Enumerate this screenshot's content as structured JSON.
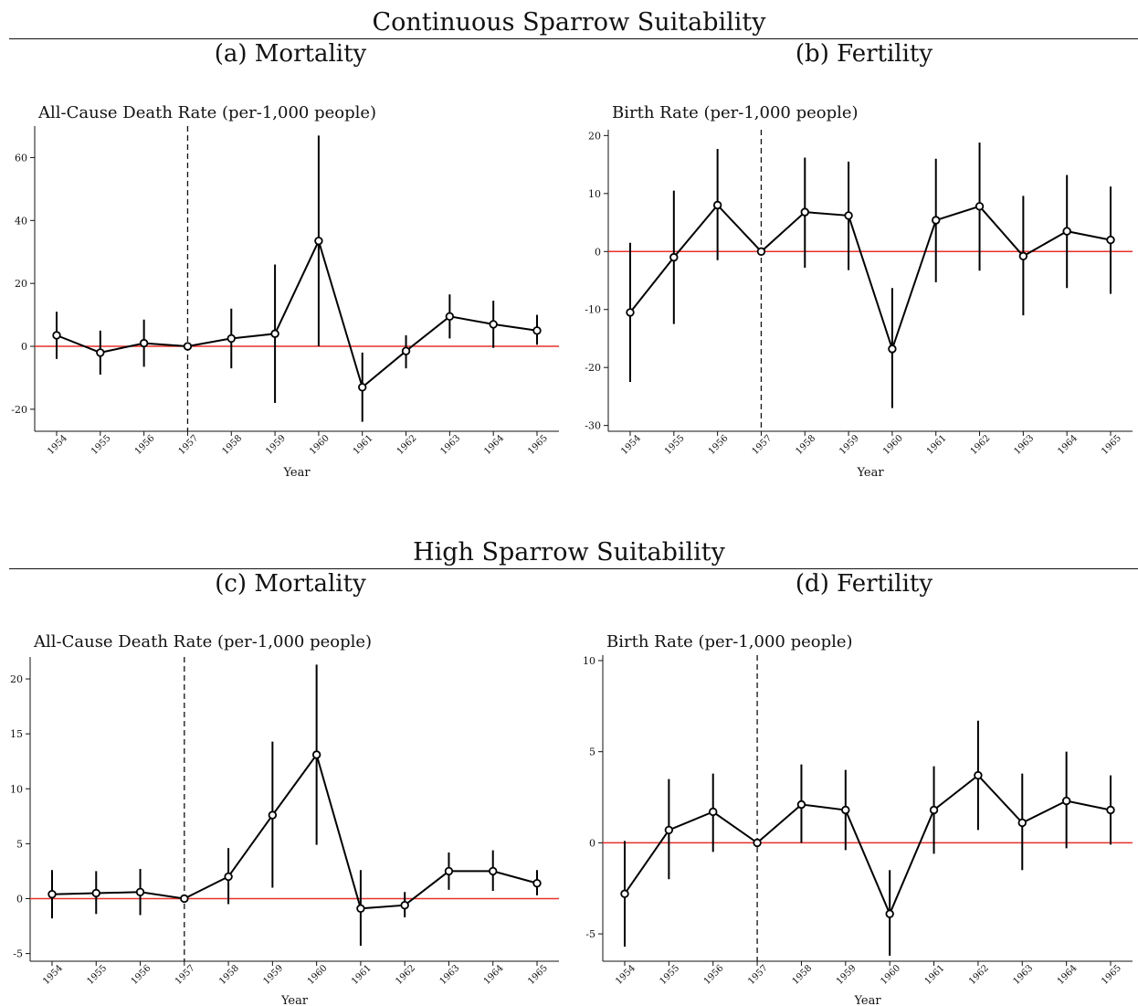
{
  "section_titles": [
    "Continuous Sparrow Suitability",
    "High Sparrow Suitability"
  ],
  "chart_data": [
    {
      "type": "line",
      "panel_title": "(a) Mortality",
      "title": "All-Cause Death Rate (per-1,000 people)",
      "xlabel": "Year",
      "ylabel": "",
      "categories": [
        "1954",
        "1955",
        "1956",
        "1957",
        "1958",
        "1959",
        "1960",
        "1961",
        "1962",
        "1963",
        "1964",
        "1965"
      ],
      "values": [
        3.5,
        -2.0,
        1.0,
        0,
        2.5,
        4.0,
        33.5,
        -13.0,
        -1.5,
        9.5,
        7.0,
        5.0
      ],
      "ci_low": [
        -4.0,
        -9.0,
        -6.5,
        0,
        -7.0,
        -18.0,
        0,
        -24.0,
        -7.0,
        2.5,
        -0.5,
        0.5
      ],
      "ci_high": [
        11.0,
        5.0,
        8.5,
        0,
        12.0,
        26.0,
        67.0,
        -2.0,
        3.5,
        16.5,
        14.5,
        10.0
      ],
      "yticks": [
        -20,
        0,
        20,
        40,
        60
      ],
      "ylim": [
        -27,
        70
      ],
      "reference_year": "1957",
      "zero_line_color": "#e8302a",
      "line_color": "#000000"
    },
    {
      "type": "line",
      "panel_title": "(b) Fertility",
      "title": "Birth Rate (per-1,000 people)",
      "xlabel": "Year",
      "ylabel": "",
      "categories": [
        "1954",
        "1955",
        "1956",
        "1957",
        "1958",
        "1959",
        "1960",
        "1961",
        "1962",
        "1963",
        "1964",
        "1965"
      ],
      "values": [
        -10.5,
        -1.0,
        8.0,
        0,
        6.8,
        6.2,
        -16.8,
        5.4,
        7.8,
        -0.8,
        3.5,
        2.0
      ],
      "ci_low": [
        -22.5,
        -12.5,
        -1.5,
        0,
        -2.8,
        -3.2,
        -27.0,
        -5.3,
        -3.3,
        -11.0,
        -6.3,
        -7.3
      ],
      "ci_high": [
        1.5,
        10.5,
        17.7,
        0,
        16.2,
        15.5,
        -6.3,
        16.0,
        18.8,
        9.6,
        13.2,
        11.2
      ],
      "yticks": [
        -30,
        -20,
        -10,
        0,
        10,
        20
      ],
      "ylim": [
        -31,
        21
      ],
      "reference_year": "1957",
      "zero_line_color": "#e8302a",
      "line_color": "#000000"
    },
    {
      "type": "line",
      "panel_title": "(c) Mortality",
      "title": "All-Cause Death Rate (per-1,000 people)",
      "xlabel": "Year",
      "ylabel": "",
      "categories": [
        "1954",
        "1955",
        "1956",
        "1957",
        "1958",
        "1959",
        "1960",
        "1961",
        "1962",
        "1963",
        "1964",
        "1965"
      ],
      "values": [
        0.4,
        0.5,
        0.6,
        0,
        2.0,
        7.6,
        13.1,
        -0.9,
        -0.6,
        2.5,
        2.5,
        1.4
      ],
      "ci_low": [
        -1.8,
        -1.4,
        -1.5,
        0,
        -0.5,
        1.0,
        4.9,
        -4.3,
        -1.7,
        0.8,
        0.7,
        0.3
      ],
      "ci_high": [
        2.6,
        2.5,
        2.7,
        0,
        4.6,
        14.3,
        21.3,
        2.6,
        0.6,
        4.2,
        4.4,
        2.6
      ],
      "yticks": [
        -5,
        0,
        5,
        10,
        15,
        20
      ],
      "ylim": [
        -5.7,
        22
      ],
      "reference_year": "1957",
      "zero_line_color": "#e8302a",
      "line_color": "#000000"
    },
    {
      "type": "line",
      "panel_title": "(d) Fertility",
      "title": "Birth Rate (per-1,000 people)",
      "xlabel": "Year",
      "ylabel": "",
      "categories": [
        "1954",
        "1955",
        "1956",
        "1957",
        "1958",
        "1959",
        "1960",
        "1961",
        "1962",
        "1963",
        "1964",
        "1965"
      ],
      "values": [
        -2.8,
        0.7,
        1.7,
        0,
        2.1,
        1.8,
        -3.9,
        1.8,
        3.7,
        1.1,
        2.3,
        1.8
      ],
      "ci_low": [
        -5.7,
        -2.0,
        -0.5,
        0,
        0,
        -0.4,
        -6.2,
        -0.6,
        0.7,
        -1.5,
        -0.3,
        -0.1
      ],
      "ci_high": [
        0.1,
        3.5,
        3.8,
        0,
        4.3,
        4.0,
        -1.5,
        4.2,
        6.7,
        3.8,
        5.0,
        3.7
      ],
      "yticks": [
        -5,
        0,
        5,
        10
      ],
      "ylim": [
        -6.5,
        10.3
      ],
      "reference_year": "1957",
      "zero_line_color": "#e8302a",
      "line_color": "#000000"
    }
  ]
}
